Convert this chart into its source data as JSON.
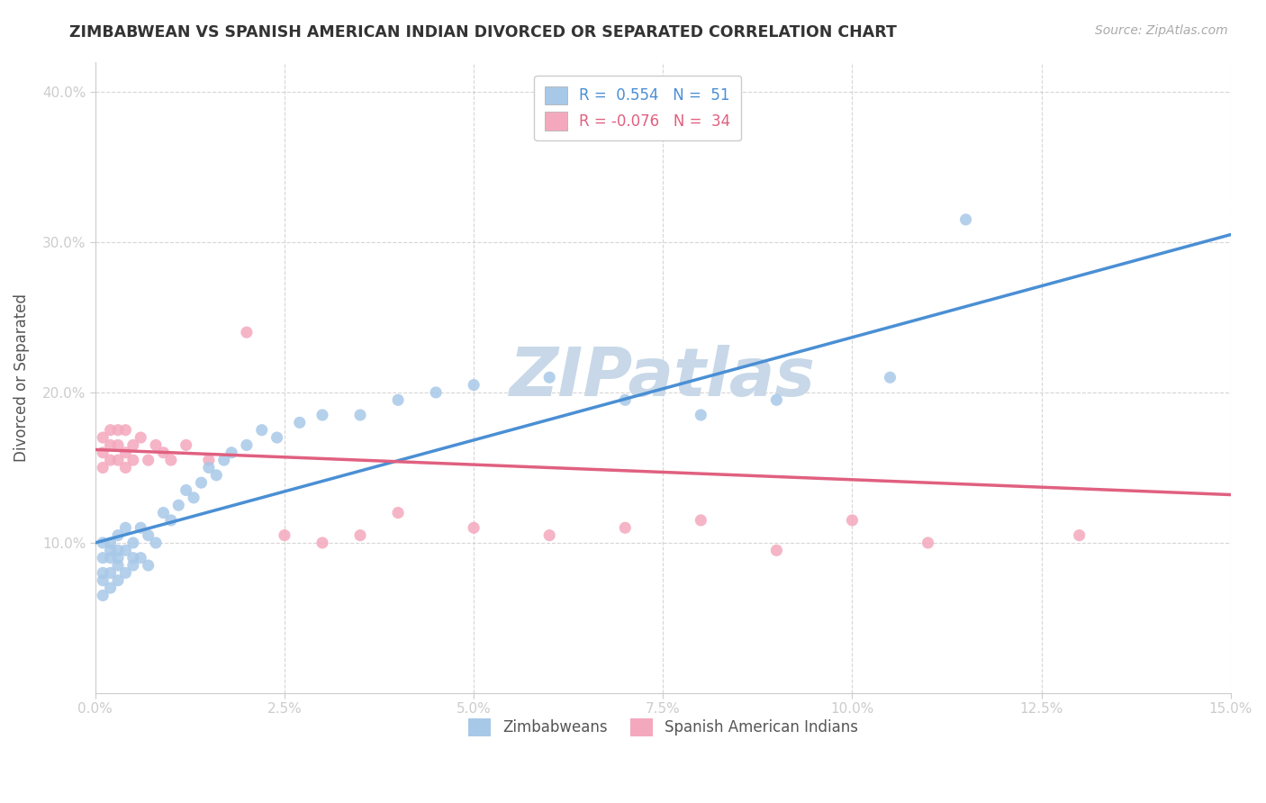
{
  "title": "ZIMBABWEAN VS SPANISH AMERICAN INDIAN DIVORCED OR SEPARATED CORRELATION CHART",
  "source": "Source: ZipAtlas.com",
  "ylabel_label": "Divorced or Separated",
  "xmin": 0.0,
  "xmax": 0.15,
  "ymin": 0.0,
  "ymax": 0.42,
  "series1_name": "Zimbabweans",
  "series1_R": 0.554,
  "series1_N": 51,
  "series1_color": "#a8c8e8",
  "series1_line_color": "#4a8fd4",
  "series2_name": "Spanish American Indians",
  "series2_R": -0.076,
  "series2_N": 34,
  "series2_color": "#f4a8be",
  "series2_line_color": "#e06080",
  "watermark": "ZIPatlas",
  "watermark_color": "#c8d8e8",
  "background_color": "#ffffff",
  "grid_color": "#cccccc",
  "tick_label_color": "#5b9bd5",
  "zimbabwean_x": [
    0.001,
    0.001,
    0.001,
    0.001,
    0.001,
    0.002,
    0.002,
    0.002,
    0.002,
    0.002,
    0.003,
    0.003,
    0.003,
    0.003,
    0.003,
    0.004,
    0.004,
    0.004,
    0.005,
    0.005,
    0.005,
    0.006,
    0.006,
    0.007,
    0.007,
    0.008,
    0.009,
    0.01,
    0.011,
    0.012,
    0.013,
    0.014,
    0.015,
    0.016,
    0.017,
    0.018,
    0.02,
    0.022,
    0.024,
    0.027,
    0.03,
    0.035,
    0.04,
    0.045,
    0.05,
    0.06,
    0.07,
    0.08,
    0.09,
    0.105,
    0.115
  ],
  "zimbabwean_y": [
    0.065,
    0.075,
    0.08,
    0.09,
    0.1,
    0.07,
    0.08,
    0.09,
    0.095,
    0.1,
    0.075,
    0.085,
    0.09,
    0.095,
    0.105,
    0.08,
    0.095,
    0.11,
    0.085,
    0.09,
    0.1,
    0.09,
    0.11,
    0.085,
    0.105,
    0.1,
    0.12,
    0.115,
    0.125,
    0.135,
    0.13,
    0.14,
    0.15,
    0.145,
    0.155,
    0.16,
    0.165,
    0.175,
    0.17,
    0.18,
    0.185,
    0.185,
    0.195,
    0.2,
    0.205,
    0.21,
    0.195,
    0.185,
    0.195,
    0.21,
    0.315
  ],
  "spanish_x": [
    0.001,
    0.001,
    0.001,
    0.002,
    0.002,
    0.002,
    0.003,
    0.003,
    0.003,
    0.004,
    0.004,
    0.004,
    0.005,
    0.005,
    0.006,
    0.007,
    0.008,
    0.009,
    0.01,
    0.012,
    0.015,
    0.02,
    0.025,
    0.03,
    0.035,
    0.04,
    0.05,
    0.06,
    0.07,
    0.08,
    0.09,
    0.1,
    0.11,
    0.13
  ],
  "spanish_y": [
    0.15,
    0.16,
    0.17,
    0.155,
    0.165,
    0.175,
    0.155,
    0.165,
    0.175,
    0.15,
    0.16,
    0.175,
    0.155,
    0.165,
    0.17,
    0.155,
    0.165,
    0.16,
    0.155,
    0.165,
    0.155,
    0.24,
    0.105,
    0.1,
    0.105,
    0.12,
    0.11,
    0.105,
    0.11,
    0.115,
    0.095,
    0.115,
    0.1,
    0.105
  ]
}
